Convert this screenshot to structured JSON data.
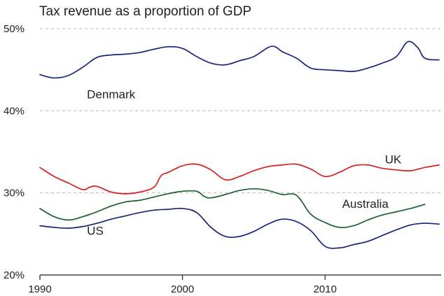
{
  "chart_data": {
    "type": "line",
    "title": "Tax revenue as a proportion of GDP",
    "xlabel": "",
    "ylabel": "",
    "xlim": [
      1990,
      2018
    ],
    "ylim": [
      20,
      50
    ],
    "y_ticks": [
      {
        "value": 50,
        "label": "50%"
      },
      {
        "value": 40,
        "label": "40%"
      },
      {
        "value": 30,
        "label": "30%"
      },
      {
        "value": 20,
        "label": "20%"
      }
    ],
    "x_ticks": [
      {
        "value": 1990,
        "label": "1990"
      },
      {
        "value": 2000,
        "label": "2000"
      },
      {
        "value": 2010,
        "label": "2010"
      }
    ],
    "grid": "horizontal-dashed",
    "series": [
      {
        "name": "Denmark",
        "label": "Denmark",
        "color": "#1a237e",
        "label_at": {
          "x": 1993.3,
          "y": 41.5
        },
        "x": [
          1990,
          1991,
          1992,
          1993,
          1994,
          1995,
          1996,
          1997,
          1998,
          1999,
          2000,
          2001,
          2002,
          2003,
          2004,
          2005,
          2006,
          2006.5,
          2007,
          2008,
          2009,
          2010,
          2011,
          2012,
          2013,
          2014,
          2015,
          2015.8,
          2016.5,
          2017,
          2018
        ],
        "y": [
          44.4,
          44.0,
          44.3,
          45.3,
          46.5,
          46.8,
          46.9,
          47.1,
          47.5,
          47.8,
          47.6,
          46.6,
          45.8,
          45.6,
          46.1,
          46.6,
          47.7,
          47.8,
          47.2,
          46.4,
          45.2,
          45.0,
          44.9,
          44.8,
          45.2,
          45.8,
          46.6,
          48.4,
          47.7,
          46.4,
          46.2
        ]
      },
      {
        "name": "UK",
        "label": "UK",
        "color": "#d42020",
        "label_at": {
          "x": 2014.2,
          "y": 33.6
        },
        "x": [
          1990,
          1991,
          1992,
          1993,
          1993.5,
          1994,
          1995,
          1996,
          1997,
          1998,
          1998.5,
          1999,
          2000,
          2001,
          2002,
          2003,
          2004,
          2005,
          2006,
          2007,
          2008,
          2009,
          2010,
          2011,
          2012,
          2013,
          2014,
          2015,
          2016,
          2017,
          2018
        ],
        "y": [
          33.1,
          32.0,
          31.2,
          30.4,
          30.7,
          30.8,
          30.1,
          29.9,
          30.1,
          30.7,
          32.1,
          32.5,
          33.3,
          33.5,
          32.8,
          31.6,
          32.0,
          32.7,
          33.2,
          33.4,
          33.5,
          32.9,
          32.0,
          32.5,
          33.3,
          33.4,
          33.0,
          32.8,
          32.7,
          33.1,
          33.4
        ]
      },
      {
        "name": "Australia",
        "label": "Australia",
        "color": "#1b5e32",
        "label_at": {
          "x": 2011.2,
          "y": 28.2
        },
        "x": [
          1990,
          1991,
          1992,
          1993,
          1994,
          1995,
          1996,
          1997,
          1998,
          1999,
          2000,
          2001,
          2001.5,
          2002,
          2003,
          2004,
          2005,
          2006,
          2007,
          2008,
          2009,
          2010,
          2011,
          2012,
          2013,
          2014,
          2015,
          2016,
          2017
        ],
        "y": [
          28.1,
          27.1,
          26.7,
          27.1,
          27.7,
          28.4,
          28.9,
          29.1,
          29.5,
          29.9,
          30.2,
          30.2,
          29.6,
          29.4,
          29.8,
          30.3,
          30.5,
          30.3,
          29.8,
          29.7,
          27.4,
          26.4,
          25.8,
          26.0,
          26.7,
          27.3,
          27.7,
          28.1,
          28.6
        ]
      },
      {
        "name": "US",
        "label": "US",
        "color": "#1a237e",
        "label_at": {
          "x": 1993.3,
          "y": 24.9
        },
        "x": [
          1990,
          1991,
          1992,
          1993,
          1994,
          1995,
          1996,
          1997,
          1998,
          1999,
          2000,
          2001,
          2002,
          2003,
          2004,
          2005,
          2006,
          2007,
          2008,
          2009,
          2010,
          2011,
          2012,
          2013,
          2014,
          2015,
          2016,
          2017,
          2018
        ],
        "y": [
          26.0,
          25.8,
          25.7,
          25.9,
          26.3,
          26.8,
          27.2,
          27.6,
          27.9,
          28.0,
          28.1,
          27.6,
          25.8,
          24.7,
          24.7,
          25.3,
          26.2,
          26.8,
          26.5,
          25.4,
          23.5,
          23.3,
          23.7,
          24.1,
          24.8,
          25.5,
          26.1,
          26.3,
          26.2
        ]
      }
    ]
  }
}
